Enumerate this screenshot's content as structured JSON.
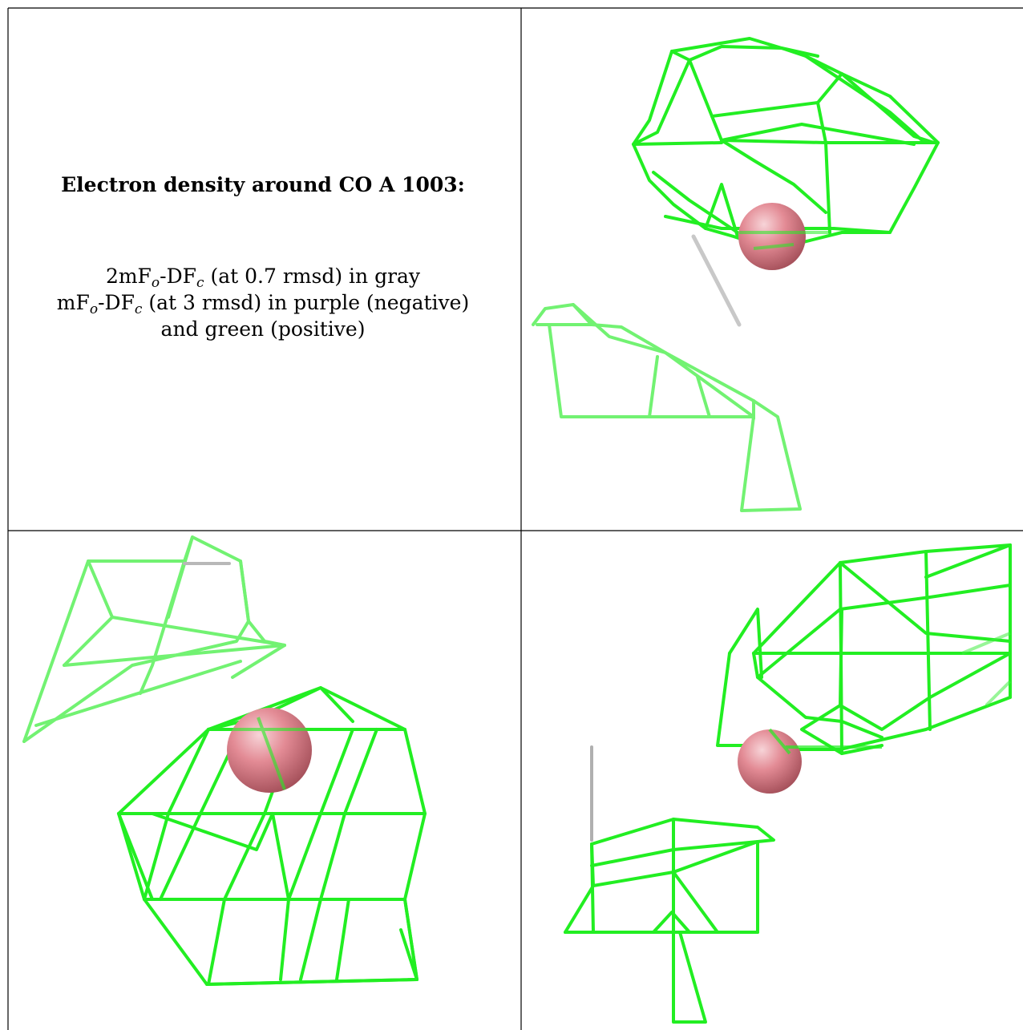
{
  "title": "Electron density around CO A 1003:",
  "line1": {
    "a": "2mF",
    "b": "o",
    "c": "-DF",
    "d": "c",
    "e": " (at 0.7 rmsd) in gray"
  },
  "line2": {
    "a": "mF",
    "b": "o",
    "c": "-DF",
    "d": "c",
    "e": " (at 3 rmsd) in purple (negative)"
  },
  "line3": "and green (positive)",
  "colors": {
    "mesh": "#22ee22",
    "atom": "#e38b95",
    "border": "#000000",
    "bond": "#b8b8b8"
  }
}
